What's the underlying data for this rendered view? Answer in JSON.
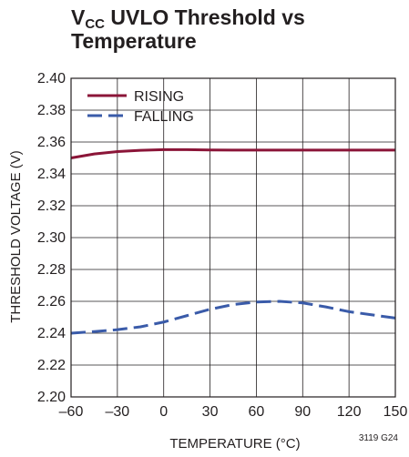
{
  "chart_data": {
    "type": "line",
    "title_main": "V",
    "title_sub": "CC",
    "title_rest": " UVLO Threshold vs",
    "title_line2": "Temperature",
    "xlabel": "TEMPERATURE (°C)",
    "ylabel": "THRESHOLD VOLTAGE (V)",
    "xlim": [
      -60,
      150
    ],
    "ylim": [
      2.2,
      2.4
    ],
    "xticks": [
      -60,
      -30,
      0,
      30,
      60,
      90,
      120,
      150
    ],
    "xtick_labels": [
      "–60",
      "–30",
      "0",
      "30",
      "60",
      "90",
      "120",
      "150"
    ],
    "yticks": [
      2.2,
      2.22,
      2.24,
      2.26,
      2.28,
      2.3,
      2.32,
      2.34,
      2.36,
      2.38,
      2.4
    ],
    "ytick_labels": [
      "2.20",
      "2.22",
      "2.24",
      "2.26",
      "2.28",
      "2.30",
      "2.32",
      "2.34",
      "2.36",
      "2.38",
      "2.40"
    ],
    "grid": true,
    "legend_position": "top-left",
    "series": [
      {
        "name": "RISING",
        "color": "#8b1538",
        "dash": "solid",
        "x": [
          -60,
          -45,
          -30,
          -15,
          0,
          15,
          30,
          45,
          60,
          75,
          90,
          105,
          120,
          135,
          150
        ],
        "y": [
          2.35,
          2.3525,
          2.354,
          2.3548,
          2.3552,
          2.3552,
          2.355,
          2.3549,
          2.3549,
          2.3549,
          2.3549,
          2.3549,
          2.3549,
          2.3549,
          2.3549
        ]
      },
      {
        "name": "FALLING",
        "color": "#3a5ba9",
        "dash": "dashed",
        "x": [
          -60,
          -45,
          -30,
          -15,
          0,
          15,
          30,
          45,
          60,
          75,
          90,
          105,
          120,
          135,
          150
        ],
        "y": [
          2.24,
          2.241,
          2.2422,
          2.244,
          2.247,
          2.251,
          2.255,
          2.258,
          2.2596,
          2.26,
          2.259,
          2.2565,
          2.2535,
          2.2515,
          2.2495
        ]
      }
    ]
  },
  "figure_id": "3119 G24"
}
